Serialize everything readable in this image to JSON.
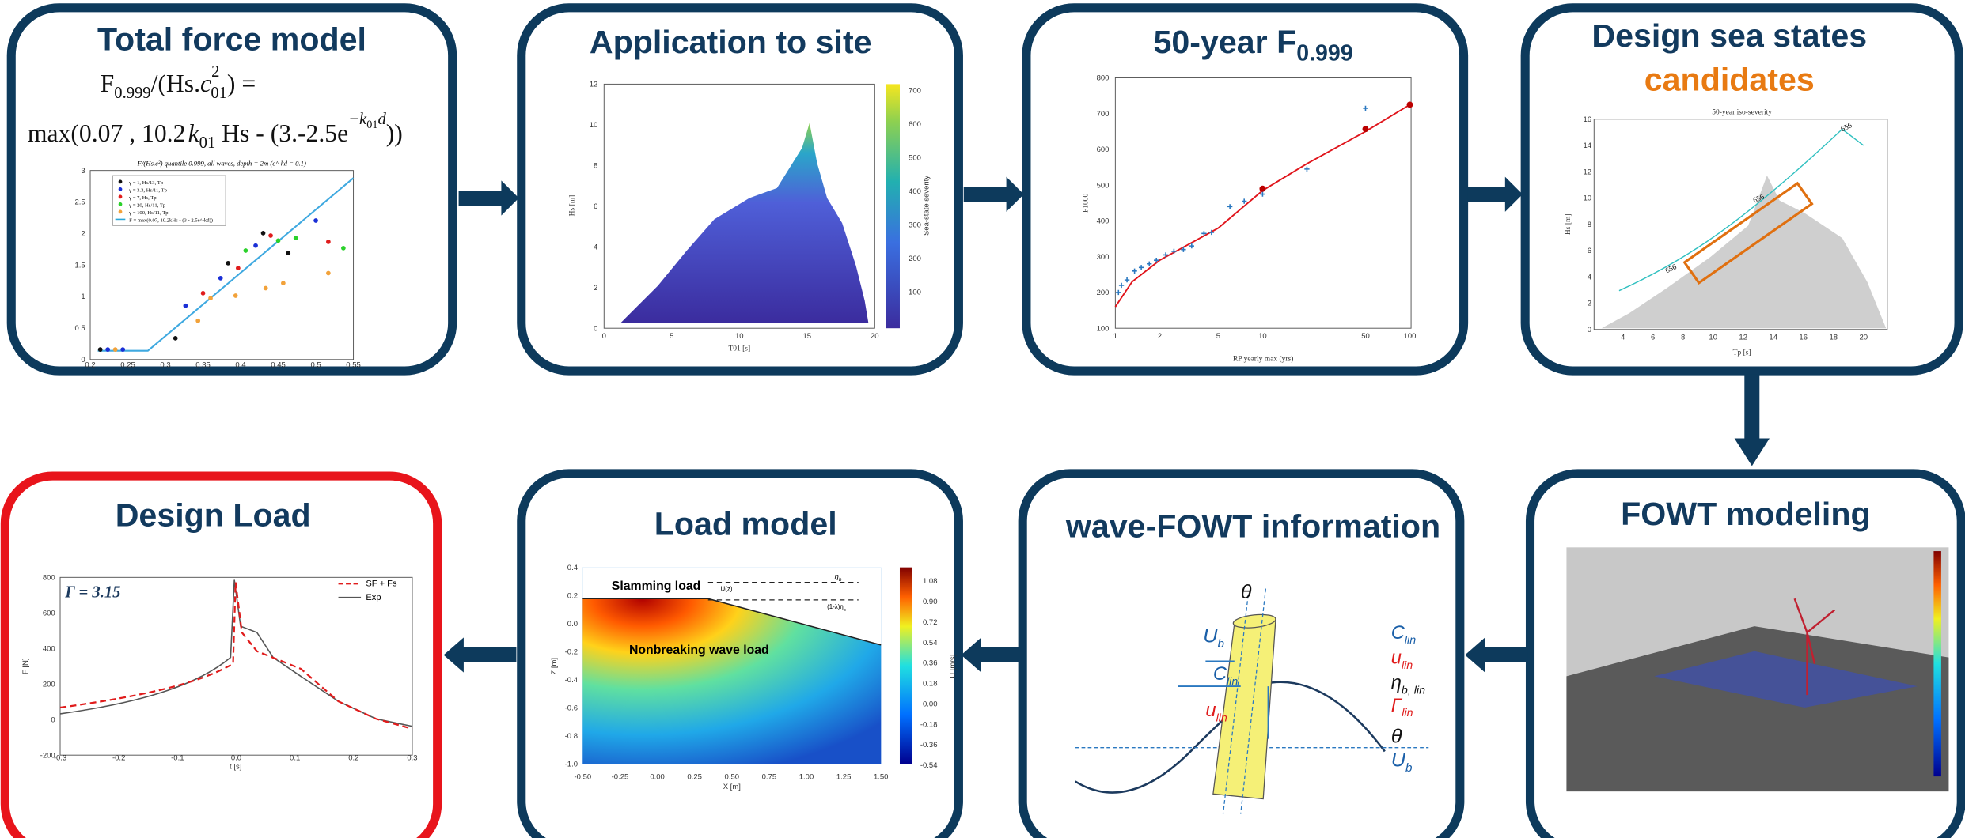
{
  "panels": {
    "total_force": {
      "title": "Total force model",
      "formula1": [
        "F",
        "0.999",
        "/(Hs.",
        "c",
        "2",
        "01",
        ") ="
      ],
      "formula2": [
        "max(0.07 , 10.2",
        "k",
        "01",
        " Hs - (3.-2.5e",
        "−k",
        "01",
        "d",
        "))"
      ],
      "plot_title": "F/(Hs.c²) quantile 0.999, all waves, depth = 2m (e^-kd = 0.1)",
      "legend": [
        "γ = 1, Hs/13, Tp",
        "γ = 3.3, Hs/11, Tp",
        "γ = 7, Hs, Tp",
        "γ = 20, Hs/11, Tp",
        "γ = 100, Hs/11, Tp",
        "F = max(0.07, 10.2kHs - (3 - 2.5e^-kd))"
      ],
      "xticks": [
        "0.2",
        "0.25",
        "0.3",
        "0.35",
        "0.4",
        "0.45",
        "0.5",
        "0.55"
      ],
      "yticks": [
        "0",
        "0.5",
        "1",
        "1.5",
        "2",
        "2.5",
        "3"
      ]
    },
    "application": {
      "title": "Application to site",
      "ylabel": "Hs [m]",
      "xlabel": "T01 [s]",
      "colorbar_label": "Sea-state severity",
      "xticks": [
        "0",
        "5",
        "10",
        "15",
        "20"
      ],
      "yticks": [
        "0",
        "2",
        "4",
        "6",
        "8",
        "10",
        "12"
      ],
      "cticks": [
        "100",
        "200",
        "300",
        "400",
        "500",
        "600",
        "700"
      ]
    },
    "fifty_year": {
      "title": "50-year F",
      "title_sub": "0.999",
      "ylabel": "F1000",
      "xlabel": "RP yearly max (yrs)",
      "xticks": [
        "1",
        "2",
        "5",
        "10",
        "50",
        "100"
      ],
      "yticks": [
        "100",
        "200",
        "300",
        "400",
        "500",
        "600",
        "700",
        "800"
      ]
    },
    "sea_states": {
      "title": "Design sea states",
      "title2": "candidates",
      "plot_title": "50-year iso-severity",
      "ylabel": "Hs [m]",
      "xlabel": "Tp [s]",
      "contour_labels": [
        "656",
        "656",
        "656"
      ],
      "xticks": [
        "4",
        "6",
        "8",
        "10",
        "12",
        "14",
        "16",
        "18",
        "20"
      ],
      "yticks": [
        "0",
        "2",
        "4",
        "6",
        "8",
        "10",
        "12",
        "14",
        "16"
      ]
    },
    "fowt_modeling": {
      "title": "FOWT modeling"
    },
    "wave_fowt": {
      "title": "wave-FOWT information",
      "labels": [
        [
          "θ",
          ""
        ],
        [
          "U",
          "b"
        ],
        [
          "C",
          "lin"
        ],
        [
          "u",
          "lin"
        ],
        [
          "C",
          "lin"
        ],
        [
          "u",
          "lin"
        ],
        [
          "η",
          "b, lin"
        ],
        [
          "Γ",
          "lin"
        ],
        [
          "θ",
          ""
        ],
        [
          "U",
          "b"
        ]
      ]
    },
    "load_model": {
      "title": "Load model",
      "slamming": "Slamming load",
      "uz": "U(z)",
      "eta": "η",
      "eta_sub": "b",
      "eta2": "(1-λ)η",
      "eta2_sub": "b",
      "nonbreaking": "Nonbreaking wave load",
      "ylabel": "Z [m]",
      "xlabel": "X [m]",
      "colorbar_label": "U [m/s]",
      "xticks": [
        "-0.50",
        "-0.25",
        "0.00",
        "0.25",
        "0.50",
        "0.75",
        "1.00",
        "1.25",
        "1.50"
      ],
      "yticks": [
        "0.4",
        "0.2",
        "0.0",
        "-0.2",
        "-0.4",
        "-0.6",
        "-0.8",
        "-1.0"
      ],
      "cticks": [
        "1.08",
        "0.90",
        "0.72",
        "0.54",
        "0.36",
        "0.18",
        "0.00",
        "-0.18",
        "-0.36",
        "-0.54"
      ]
    },
    "design_load": {
      "title": "Design Load",
      "gamma": "Γ = 3.15",
      "legend": [
        "SF + Fs",
        "Exp"
      ],
      "ylabel": "F [N]",
      "xlabel": "t [s]",
      "xticks": [
        "-0.3",
        "-0.2",
        "-0.1",
        "0.0",
        "0.1",
        "0.2",
        "0.3"
      ],
      "yticks": [
        "800",
        "600",
        "400",
        "200",
        "0",
        "-200"
      ]
    }
  }
}
